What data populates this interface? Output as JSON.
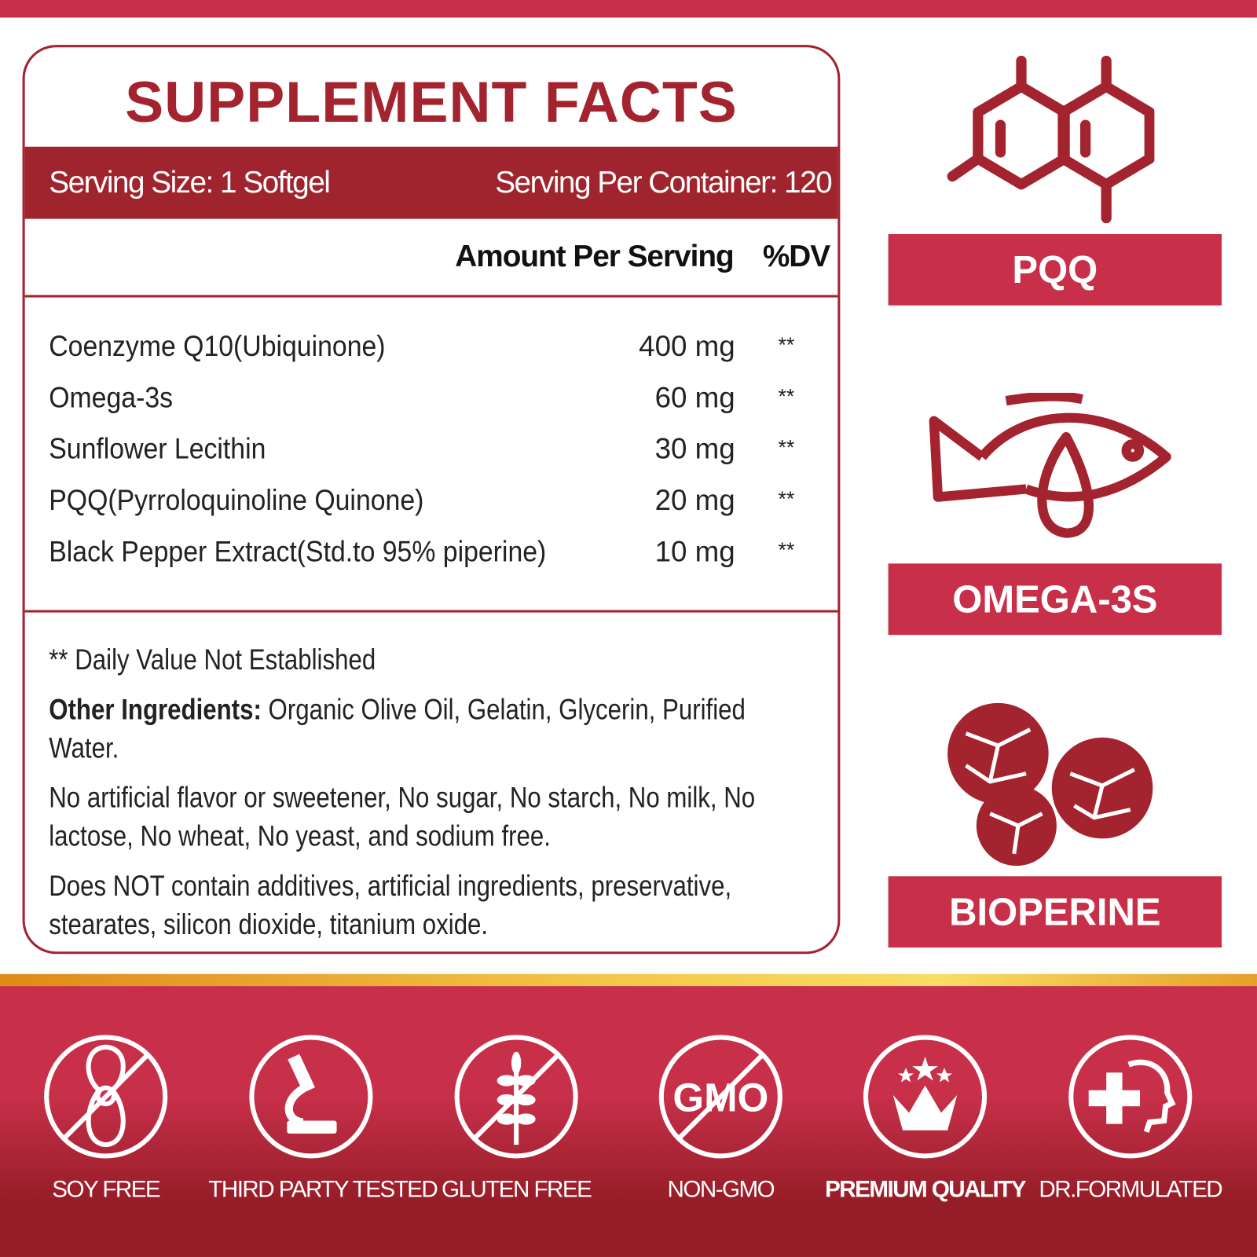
{
  "facts": {
    "title": "SUPPLEMENT FACTS",
    "serving_size": "Serving Size:  1 Softgel",
    "servings_per_container": "Serving Per Container: 120",
    "amount_header": "Amount Per Serving",
    "dv_header": "%DV",
    "ingredients": [
      {
        "name": "Coenzyme Q10(Ubiquinone)",
        "amount": "400 mg",
        "dv": "**"
      },
      {
        "name": "Omega-3s",
        "amount": "60 mg",
        "dv": "**"
      },
      {
        "name": "Sunflower Lecithin",
        "amount": "30 mg",
        "dv": "**"
      },
      {
        "name": "PQQ(Pyrroloquinoline Quinone)",
        "amount": "20 mg",
        "dv": "**"
      },
      {
        "name": "Black Pepper Extract(Std.to 95% piperine)",
        "amount": "10 mg",
        "dv": "**"
      }
    ],
    "dv_note": "** Daily Value Not Established",
    "other_label": "Other Ingredients:",
    "other_text": " Organic Olive Oil, Gelatin, Glycerin, Purified Water.",
    "free_from": "No artificial flavor or sweetener, No sugar, No starch, No milk, No lactose, No wheat, No yeast, and sodium free.",
    "no_additives": "Does NOT contain additives, artificial ingredients, preservative, stearates, silicon dioxide, titanium oxide."
  },
  "highlights": [
    {
      "icon": "molecule-icon",
      "label": "PQQ"
    },
    {
      "icon": "fish-oil-icon",
      "label": "OMEGA-3S"
    },
    {
      "icon": "peppercorn-icon",
      "label": "BIOPERINE"
    }
  ],
  "badges": [
    {
      "icon": "no-soy-icon",
      "label": "SOY FREE"
    },
    {
      "icon": "microscope-icon",
      "label": "THIRD PARTY TESTED"
    },
    {
      "icon": "no-gluten-icon",
      "label": "GLUTEN FREE"
    },
    {
      "icon": "no-gmo-icon",
      "label": "NON-GMO",
      "icon_text": "GMO"
    },
    {
      "icon": "crown-stars-icon",
      "label": "PREMIUM QUALITY"
    },
    {
      "icon": "doctor-cross-icon",
      "label": "DR.FORMULATED"
    }
  ],
  "colors": {
    "brand_red": "#c8304a",
    "dark_red": "#a0242d",
    "gold": "#f4c94a"
  }
}
